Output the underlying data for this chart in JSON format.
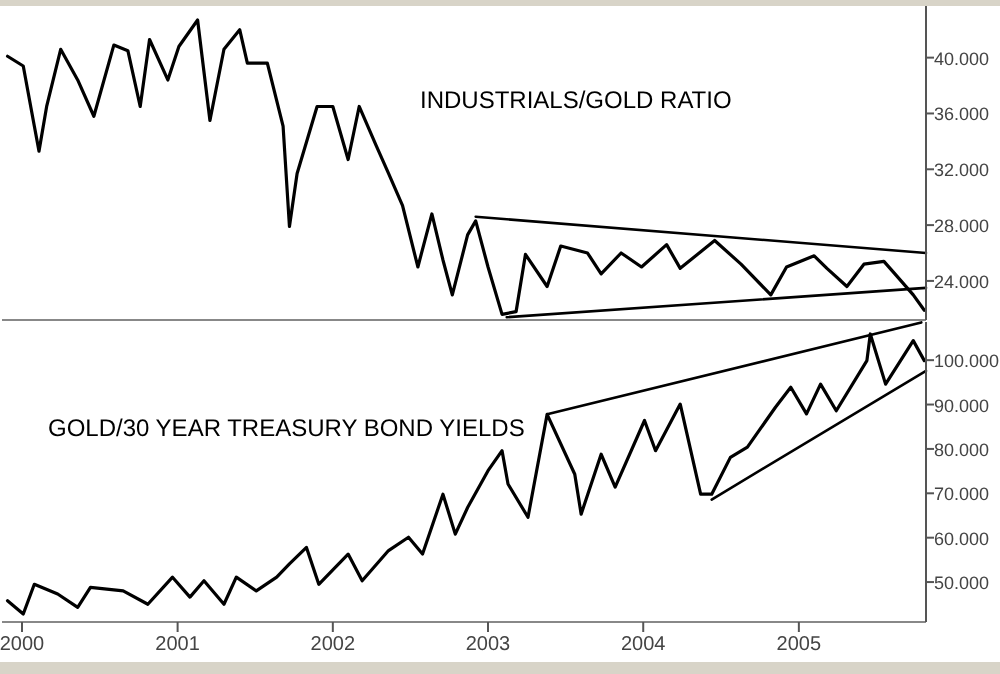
{
  "chart_data": [
    {
      "type": "line",
      "title": "INDUSTRIALS/GOLD RATIO",
      "tick_labels": "y",
      "xlim": [
        "1999-11-15",
        "2005-10-27"
      ],
      "ylim": [
        21.2,
        43.7
      ],
      "yticks": [
        {
          "value": 24,
          "label": "24.000"
        },
        {
          "value": 28,
          "label": "28.000"
        },
        {
          "value": 32,
          "label": "32.000"
        },
        {
          "value": 36,
          "label": "36.000"
        },
        {
          "value": 40,
          "label": "40.000"
        }
      ],
      "series": [
        {
          "color": "#000000",
          "x": [
            "1999-11-28",
            "2000-01-04",
            "2000-01-30",
            "2000-02-10",
            "2000-02-28",
            "2000-04-01",
            "2000-05-11",
            "2000-06-18",
            "2000-08-04",
            "2000-09-06",
            "2000-10-05",
            "2000-10-27",
            "2000-12-09",
            "2001-01-04",
            "2001-02-17",
            "2001-03-18",
            "2001-04-20",
            "2001-05-27",
            "2001-06-14",
            "2001-07-31",
            "2001-09-06",
            "2001-09-21",
            "2001-10-09",
            "2001-11-25",
            "2002-01-01",
            "2002-02-06",
            "2002-03-04",
            "2002-04-13",
            "2002-05-12",
            "2002-06-14",
            "2002-07-20",
            "2002-08-22",
            "2002-09-17",
            "2002-10-09",
            "2002-11-14",
            "2002-12-03",
            "2003-01-01",
            "2003-02-03",
            "2003-03-08",
            "2003-03-30",
            "2003-05-20",
            "2003-06-21",
            "2003-08-23",
            "2003-09-24",
            "2003-11-10",
            "2003-12-28",
            "2004-02-25",
            "2004-03-28",
            "2004-06-17",
            "2004-08-18",
            "2004-10-27",
            "2004-12-03",
            "2005-02-06",
            "2005-03-08",
            "2005-04-24",
            "2005-06-03",
            "2005-07-20",
            "2005-08-18",
            "2005-09-27",
            "2005-10-23"
          ],
          "values": [
            40.1,
            39.4,
            35.1,
            33.3,
            36.5,
            40.6,
            38.4,
            35.8,
            40.9,
            40.5,
            36.5,
            41.3,
            38.4,
            40.8,
            42.7,
            35.5,
            40.6,
            42,
            39.6,
            39.6,
            35.1,
            27.9,
            31.7,
            36.5,
            36.5,
            32.7,
            36.5,
            33.7,
            31.7,
            29.4,
            25,
            28.8,
            25.5,
            23,
            27.3,
            28.3,
            25,
            21.6,
            21.8,
            25.9,
            23.6,
            26.5,
            26,
            24.5,
            26,
            25,
            26.6,
            24.9,
            26.9,
            25.2,
            23,
            25,
            25.8,
            24.9,
            23.6,
            25.2,
            25.4,
            24.4,
            23,
            21.9
          ]
        },
        {
          "type": "line",
          "color": "#000000",
          "x": [
            "2002-12-03",
            "2005-10-27"
          ],
          "values": [
            28.6,
            26.0
          ]
        },
        {
          "type": "line",
          "color": "#000000",
          "x": [
            "2003-02-14",
            "2005-10-27"
          ],
          "values": [
            21.4,
            23.5
          ]
        }
      ]
    },
    {
      "type": "line",
      "title": "GOLD/30 YEAR TREASURY BOND YIELDS",
      "xlim": [
        "1999-11-15",
        "2005-10-27"
      ],
      "ylim": [
        41,
        108.6
      ],
      "xticks": [
        {
          "value": "2000-01-01",
          "label": "2000"
        },
        {
          "value": "2001-01-01",
          "label": "2001"
        },
        {
          "value": "2002-01-01",
          "label": "2002"
        },
        {
          "value": "2003-01-01",
          "label": "2003"
        },
        {
          "value": "2004-01-01",
          "label": "2004"
        },
        {
          "value": "2005-01-01",
          "label": "2005"
        }
      ],
      "yticks": [
        {
          "value": 50,
          "label": "50.000"
        },
        {
          "value": 60,
          "label": "60.000"
        },
        {
          "value": 70,
          "label": "70.000"
        },
        {
          "value": 80,
          "label": "80.000"
        },
        {
          "value": 90,
          "label": "90.000"
        },
        {
          "value": 100,
          "label": "100.000"
        }
      ],
      "series": [
        {
          "color": "#000000",
          "x": [
            "1999-11-28",
            "2000-01-04",
            "2000-01-30",
            "2000-03-25",
            "2000-05-11",
            "2000-06-10",
            "2000-08-26",
            "2000-10-23",
            "2000-12-20",
            "2001-01-30",
            "2001-03-04",
            "2001-04-20",
            "2001-05-19",
            "2001-07-05",
            "2001-08-22",
            "2001-09-21",
            "2001-10-31",
            "2001-11-29",
            "2002-02-06",
            "2002-03-11",
            "2002-05-12",
            "2002-06-28",
            "2002-07-31",
            "2002-09-17",
            "2002-10-16",
            "2002-11-14",
            "2003-01-01",
            "2003-02-03",
            "2003-02-17",
            "2003-04-05",
            "2003-05-20",
            "2003-07-24",
            "2003-08-08",
            "2003-09-24",
            "2003-10-27",
            "2004-01-04",
            "2004-01-30",
            "2004-03-28",
            "2004-05-15",
            "2004-06-10",
            "2004-07-24",
            "2004-09-02",
            "2004-11-07",
            "2004-12-13",
            "2005-01-19",
            "2005-02-21",
            "2005-03-30",
            "2005-06-10",
            "2005-06-18",
            "2005-07-24",
            "2005-09-27",
            "2005-10-23"
          ],
          "values": [
            45.8,
            42.8,
            49.5,
            47.3,
            44.3,
            48.8,
            48,
            45,
            51.1,
            46.6,
            50.3,
            45,
            51.1,
            48,
            51.1,
            54.1,
            57.8,
            49.5,
            56.3,
            50.3,
            57.1,
            60.1,
            56.3,
            69.8,
            60.8,
            66.8,
            75.1,
            79.6,
            72.1,
            64.6,
            87.8,
            74.3,
            65.3,
            78.8,
            71.4,
            86.4,
            79.6,
            90.1,
            69.8,
            69.8,
            78.1,
            80.4,
            89.4,
            93.9,
            87.9,
            94.6,
            88.6,
            99.9,
            105.9,
            94.6,
            104.4,
            99.9
          ]
        },
        {
          "type": "line",
          "color": "#000000",
          "x": [
            "2003-05-20",
            "2005-10-16"
          ],
          "values": [
            87.8,
            108.5
          ]
        },
        {
          "type": "line",
          "color": "#000000",
          "x": [
            "2004-06-10",
            "2005-10-27"
          ],
          "values": [
            68.6,
            97.6
          ]
        }
      ]
    }
  ]
}
